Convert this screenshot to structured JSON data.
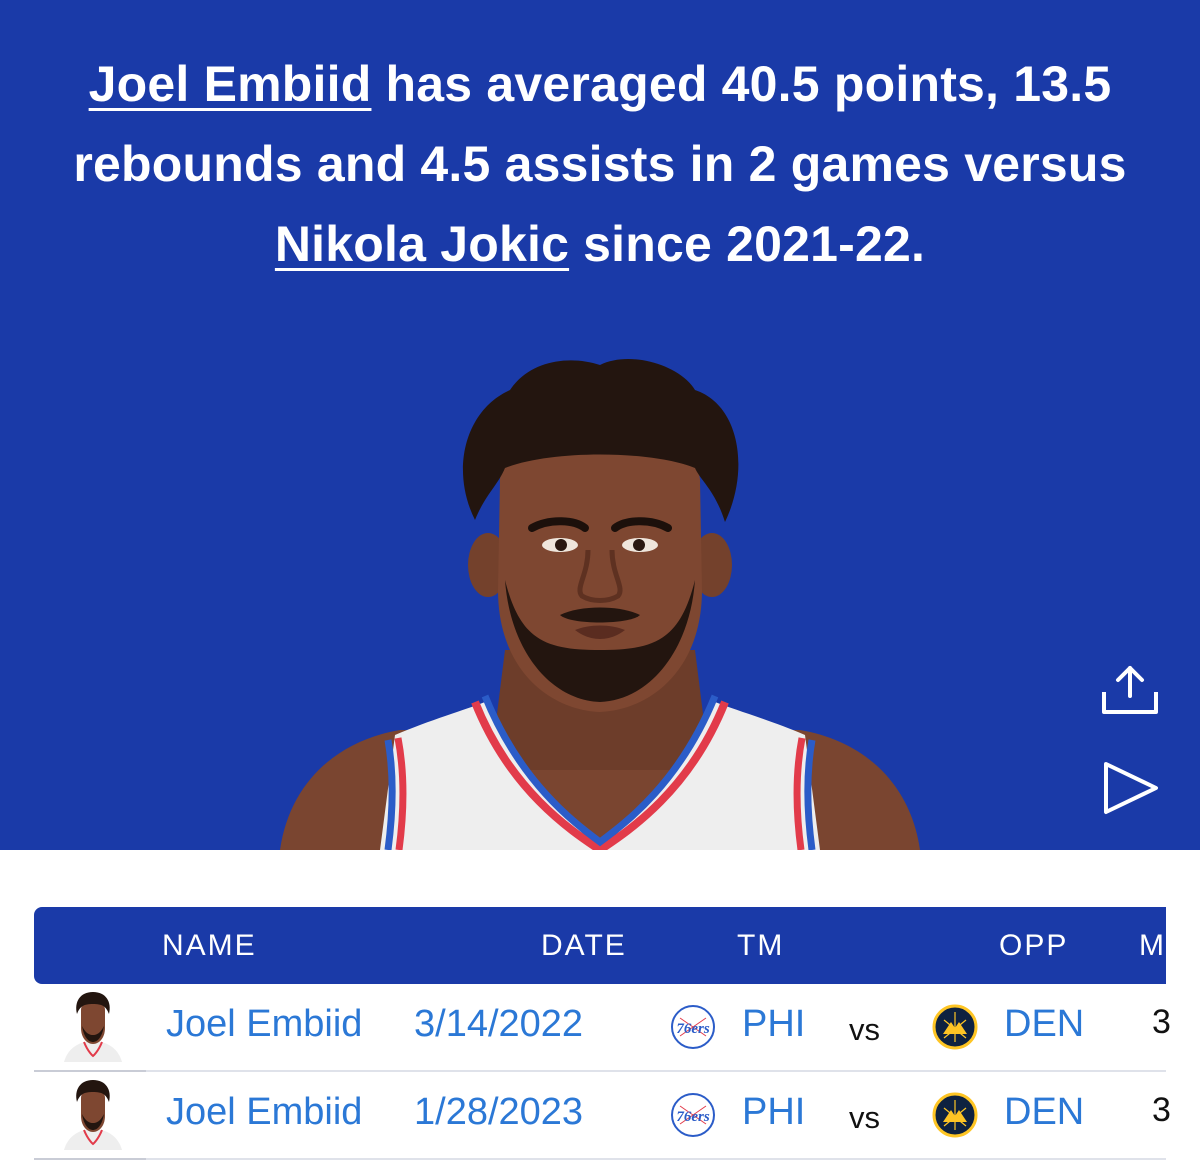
{
  "headline": {
    "player_link": "Joel Embiid",
    "text_part_1": " has averaged 40.5 points, 13.5 rebounds and 4.5 assists in 2 games versus ",
    "opponent_link": "Nikola Jokic",
    "text_part_2": " since 2021-22."
  },
  "actions": {
    "share_icon": "share-icon",
    "play_icon": "play-icon"
  },
  "colors": {
    "brand_blue": "#1a3aa8",
    "link_blue": "#2b78d6",
    "white": "#ffffff"
  },
  "table": {
    "columns": [
      "NAME",
      "DATE",
      "TM",
      "OPP",
      "M"
    ],
    "rows": [
      {
        "name": "Joel Embiid",
        "date": "3/14/2022",
        "tm": "PHI",
        "vs": "vs",
        "opp": "DEN",
        "more": "3"
      },
      {
        "name": "Joel Embiid",
        "date": "1/28/2023",
        "tm": "PHI",
        "vs": "vs",
        "opp": "DEN",
        "more": "3"
      }
    ]
  }
}
